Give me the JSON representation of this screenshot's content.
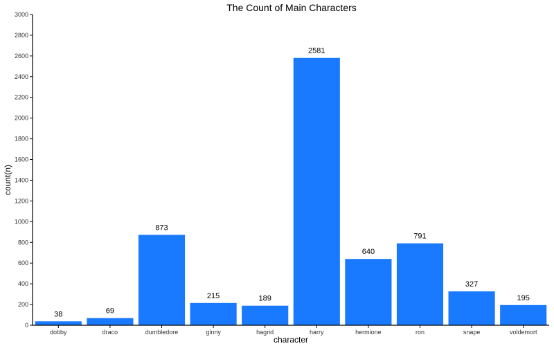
{
  "chart_data": {
    "type": "bar",
    "title": "The Count of Main Characters",
    "xlabel": "character",
    "ylabel": "count(n)",
    "categories": [
      "dobby",
      "draco",
      "dumbledore",
      "ginny",
      "hagrid",
      "harry",
      "hermione",
      "ron",
      "snape",
      "voldemort"
    ],
    "values": [
      38,
      69,
      873,
      215,
      189,
      2581,
      640,
      791,
      327,
      195
    ],
    "data_labels": [
      "38",
      "69",
      "873",
      "215",
      "189",
      "2581",
      "640",
      "791",
      "327",
      "195"
    ],
    "ylim": [
      0,
      3000
    ],
    "yticks": [
      0,
      200,
      400,
      600,
      800,
      1000,
      1200,
      1400,
      1600,
      1800,
      2000,
      2200,
      2400,
      2600,
      2800,
      3000
    ],
    "ytick_labels": [
      "0",
      "200",
      "400",
      "600",
      "800",
      "1000",
      "1200",
      "1400",
      "1600",
      "1800",
      "2000",
      "2200",
      "2400",
      "2600",
      "2800",
      "3000"
    ],
    "grid": false,
    "legend": "none",
    "bar_color": "#1a7aff",
    "axis_color": "#000000"
  }
}
